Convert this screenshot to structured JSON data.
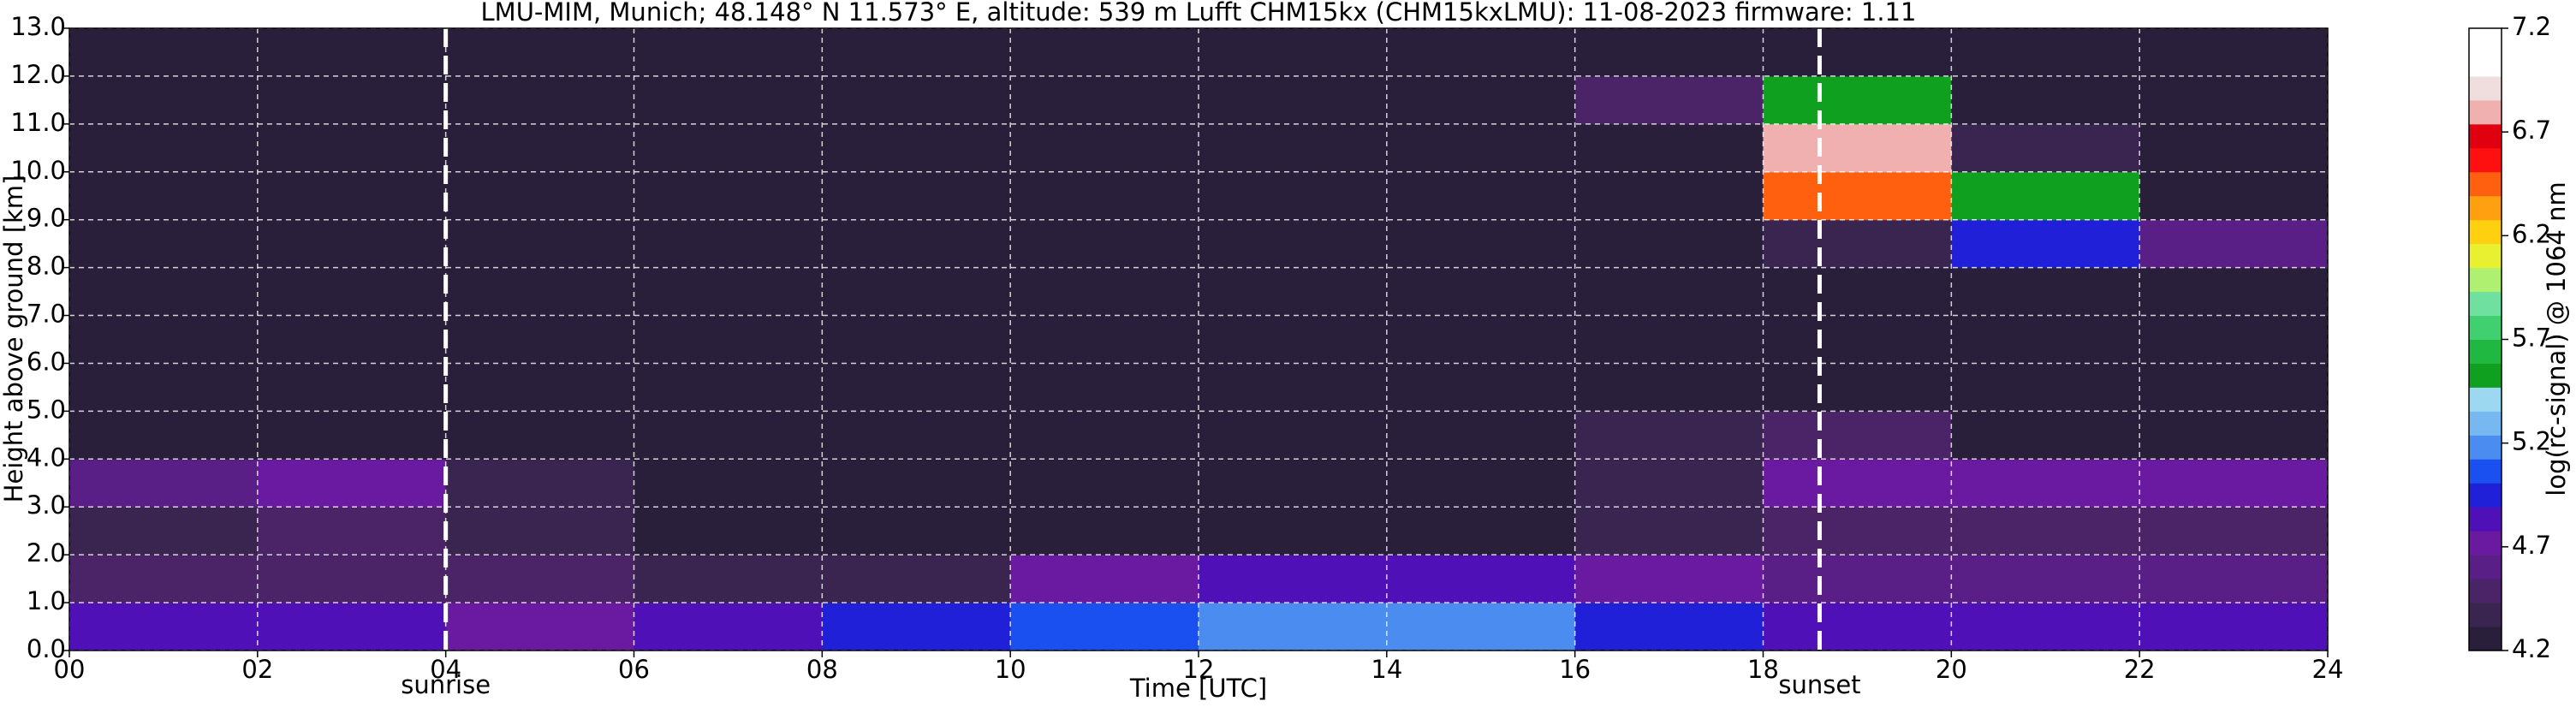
{
  "chart_data": {
    "type": "heatmap",
    "title": "LMU-MIM, Munich; 48.148° N 11.573° E, altitude: 539 m    Lufft CHM15kx (CHM15kxLMU): 11-08-2023    firmware: 1.11",
    "xlabel": "Time [UTC]",
    "ylabel": "Height above ground [km]",
    "x": [
      1,
      3,
      5,
      7,
      9,
      11,
      13,
      15,
      17,
      19,
      21,
      23
    ],
    "y": [
      0.5,
      1.5,
      2.5,
      3.5,
      4.5,
      5.5,
      6.5,
      7.5,
      8.5,
      9.5,
      10.5,
      11.5,
      12.5
    ],
    "values": [
      [
        4.8,
        4.8,
        4.75,
        4.8,
        4.9,
        5.1,
        5.2,
        5.2,
        5.0,
        4.8,
        4.8,
        4.8
      ],
      [
        4.5,
        4.5,
        4.45,
        4.4,
        4.4,
        4.7,
        4.8,
        4.8,
        4.7,
        4.6,
        4.55,
        4.55
      ],
      [
        4.4,
        4.45,
        4.35,
        4.3,
        4.3,
        4.3,
        4.3,
        4.3,
        4.35,
        4.5,
        4.5,
        4.5
      ],
      [
        4.6,
        4.7,
        4.35,
        4.3,
        4.3,
        4.3,
        4.3,
        4.3,
        4.35,
        4.7,
        4.75,
        4.7
      ],
      [
        4.3,
        4.3,
        4.3,
        4.3,
        4.3,
        4.3,
        4.3,
        4.3,
        4.35,
        4.5,
        4.3,
        4.3
      ],
      [
        4.3,
        4.3,
        4.3,
        4.3,
        4.3,
        4.3,
        4.3,
        4.3,
        4.3,
        4.3,
        4.3,
        4.3
      ],
      [
        4.3,
        4.3,
        4.3,
        4.3,
        4.3,
        4.3,
        4.3,
        4.3,
        4.3,
        4.3,
        4.3,
        4.3
      ],
      [
        4.3,
        4.3,
        4.3,
        4.3,
        4.3,
        4.3,
        4.3,
        4.3,
        4.3,
        4.3,
        4.3,
        4.3
      ],
      [
        4.3,
        4.3,
        4.3,
        4.3,
        4.3,
        4.3,
        4.3,
        4.3,
        4.3,
        4.35,
        5.0,
        4.6
      ],
      [
        4.3,
        4.3,
        4.3,
        4.3,
        4.3,
        4.3,
        4.3,
        4.3,
        4.3,
        6.5,
        5.5,
        4.3
      ],
      [
        4.3,
        4.3,
        4.3,
        4.3,
        4.3,
        4.3,
        4.3,
        4.3,
        4.3,
        6.8,
        4.4,
        4.3
      ],
      [
        4.3,
        4.3,
        4.3,
        4.3,
        4.3,
        4.3,
        4.3,
        4.3,
        4.5,
        5.5,
        4.3,
        4.3
      ],
      [
        4.3,
        4.3,
        4.3,
        4.3,
        4.3,
        4.3,
        4.3,
        4.3,
        4.3,
        4.3,
        4.3,
        4.3
      ]
    ],
    "xlim": [
      0,
      24
    ],
    "ylim": [
      0,
      13
    ],
    "xticks": [
      {
        "value": 0,
        "label": "00"
      },
      {
        "value": 2,
        "label": "02"
      },
      {
        "value": 4,
        "label": "04"
      },
      {
        "value": 6,
        "label": "06"
      },
      {
        "value": 8,
        "label": "08"
      },
      {
        "value": 10,
        "label": "10"
      },
      {
        "value": 12,
        "label": "12"
      },
      {
        "value": 14,
        "label": "14"
      },
      {
        "value": 16,
        "label": "16"
      },
      {
        "value": 18,
        "label": "18"
      },
      {
        "value": 20,
        "label": "20"
      },
      {
        "value": 22,
        "label": "22"
      },
      {
        "value": 24,
        "label": "24"
      }
    ],
    "yticks": [
      {
        "value": 0,
        "label": "0.0"
      },
      {
        "value": 1,
        "label": "1.0"
      },
      {
        "value": 2,
        "label": "2.0"
      },
      {
        "value": 3,
        "label": "3.0"
      },
      {
        "value": 4,
        "label": "4.0"
      },
      {
        "value": 5,
        "label": "5.0"
      },
      {
        "value": 6,
        "label": "6.0"
      },
      {
        "value": 7,
        "label": "7.0"
      },
      {
        "value": 8,
        "label": "8.0"
      },
      {
        "value": 9,
        "label": "9.0"
      },
      {
        "value": 10,
        "label": "10.0"
      },
      {
        "value": 11,
        "label": "11.0"
      },
      {
        "value": 12,
        "label": "12.0"
      },
      {
        "value": 13,
        "label": "13.0"
      }
    ],
    "grid": true,
    "annotations": [
      {
        "text": "sunrise",
        "x": 4.0
      },
      {
        "text": "sunset",
        "x": 18.6
      }
    ],
    "colorbar": {
      "label": "log(rc-signal) @ 1064 nm",
      "lim": [
        4.2,
        7.2
      ],
      "ticks": [
        4.2,
        4.7,
        5.2,
        5.7,
        6.2,
        6.7,
        7.2
      ],
      "colors": [
        "#2a1f3a",
        "#3a2450",
        "#4a2466",
        "#5a1f86",
        "#6a1aa0",
        "#5010b8",
        "#2020d8",
        "#1a50f0",
        "#4a8cf0",
        "#78b8f0",
        "#9cd8f0",
        "#10a020",
        "#20b840",
        "#40d070",
        "#70e0a0",
        "#b0f070",
        "#e8f030",
        "#ffd010",
        "#ffa010",
        "#ff6010",
        "#ff1010",
        "#e00010",
        "#f0b0b0",
        "#f0dede",
        "#ffffff",
        "#ffffff"
      ]
    }
  }
}
